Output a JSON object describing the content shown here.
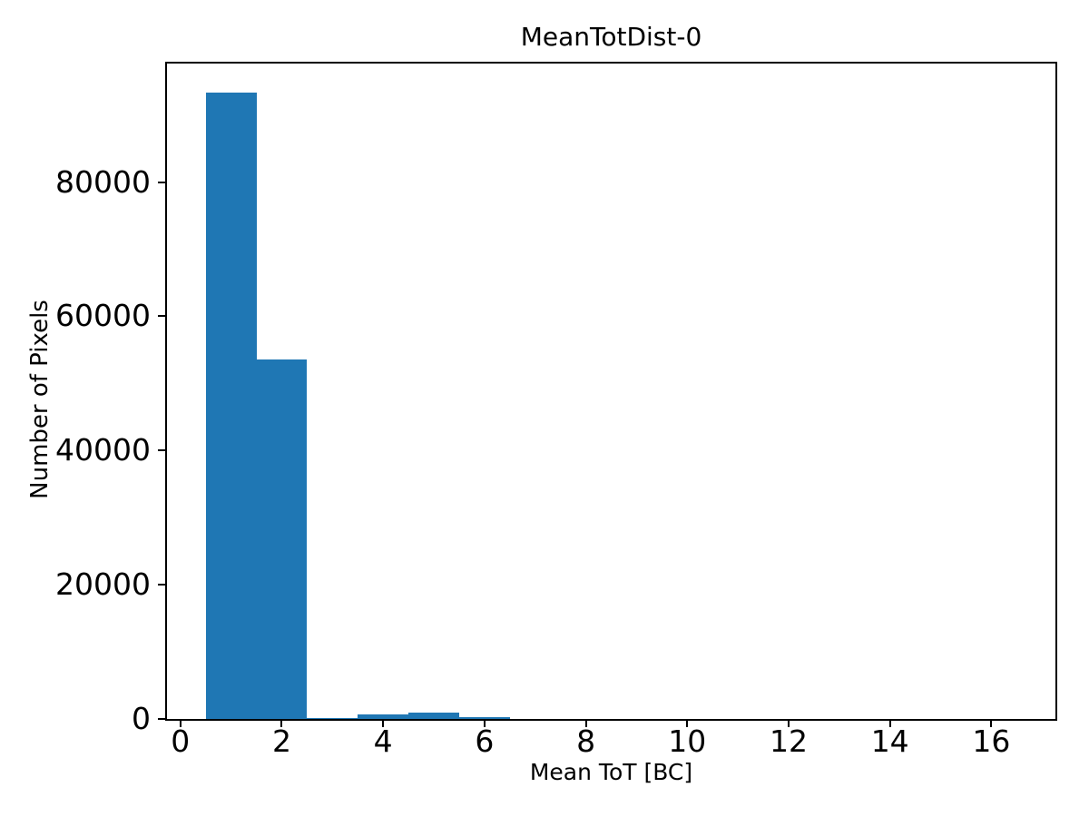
{
  "figure": {
    "background": "#ffffff",
    "text_color": "#000000"
  },
  "chart_data": {
    "type": "bar",
    "subtype": "histogram",
    "title": "MeanTotDist-0",
    "xlabel": "Mean ToT [BC]",
    "ylabel": "Number of Pixels",
    "bin_edges": [
      0.5,
      1.5,
      2.5,
      3.5,
      4.5,
      5.5,
      6.5,
      7.5,
      8.5,
      9.5,
      10.5,
      11.5,
      12.5,
      13.5,
      14.5,
      15.5,
      16.5
    ],
    "counts": [
      93300,
      53550,
      200,
      650,
      900,
      300,
      0,
      0,
      0,
      0,
      0,
      0,
      0,
      0,
      0,
      0
    ],
    "xlim": [
      -0.3,
      17.3
    ],
    "ylim": [
      0,
      97930
    ],
    "x_ticks": [
      0,
      2,
      4,
      6,
      8,
      10,
      12,
      14,
      16
    ],
    "y_ticks": [
      0,
      20000,
      40000,
      60000,
      80000
    ],
    "bar_color": "#1f77b4",
    "axis_color": "#000000",
    "grid": false,
    "legend_position": "none"
  }
}
